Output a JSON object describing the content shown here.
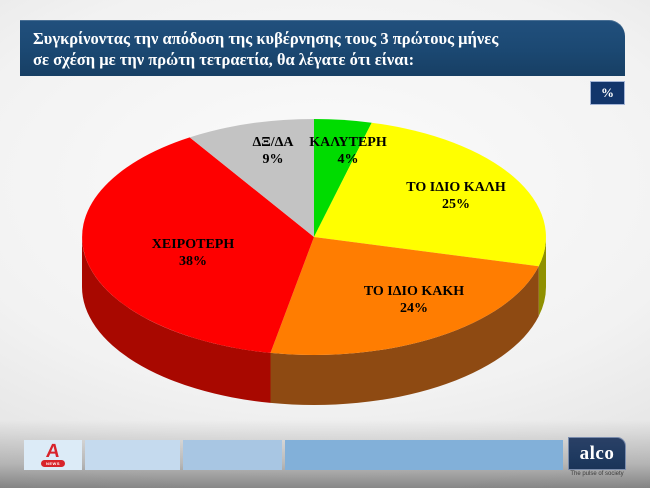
{
  "header": {
    "title_line1": "Συγκρίνοντας την απόδοση της κυβέρνησης τους 3 πρώτους μήνες",
    "title_line2": "σε σχέση με την πρώτη τετραετία, θα λέγατε ότι είναι:",
    "unit_badge": "%"
  },
  "chart_data": {
    "type": "pie",
    "style": "3d",
    "unit": "%",
    "start_angle_deg": 90,
    "direction": "clockwise",
    "slices": [
      {
        "label": "ΚΑΛΥΤΕΡΗ",
        "value": 4,
        "value_label": "4%",
        "color": "#00dc00",
        "side_color": "#0f9b0f"
      },
      {
        "label": "ΤΟ ΙΔΙΟ ΚΑΛΗ",
        "value": 25,
        "value_label": "25%",
        "color": "#ffff00",
        "side_color": "#8f9000"
      },
      {
        "label": "ΤΟ ΙΔΙΟ ΚΑΚΗ",
        "value": 24,
        "value_label": "24%",
        "color": "#ff7d01",
        "side_color": "#8e4a12"
      },
      {
        "label": "ΧΕΙΡΟΤΕΡΗ",
        "value": 38,
        "value_label": "38%",
        "color": "#fe0000",
        "side_color": "#a80800"
      },
      {
        "label": "ΔΞ/ΔΑ",
        "value": 9,
        "value_label": "9%",
        "color": "#c3c3c3",
        "side_color": "#8c8c8c"
      }
    ]
  },
  "footer": {
    "alpha_logo": {
      "letter": "A",
      "badge": "NEWS"
    },
    "alco_logo": {
      "name": "alco",
      "tagline": "The pulse of society"
    }
  }
}
